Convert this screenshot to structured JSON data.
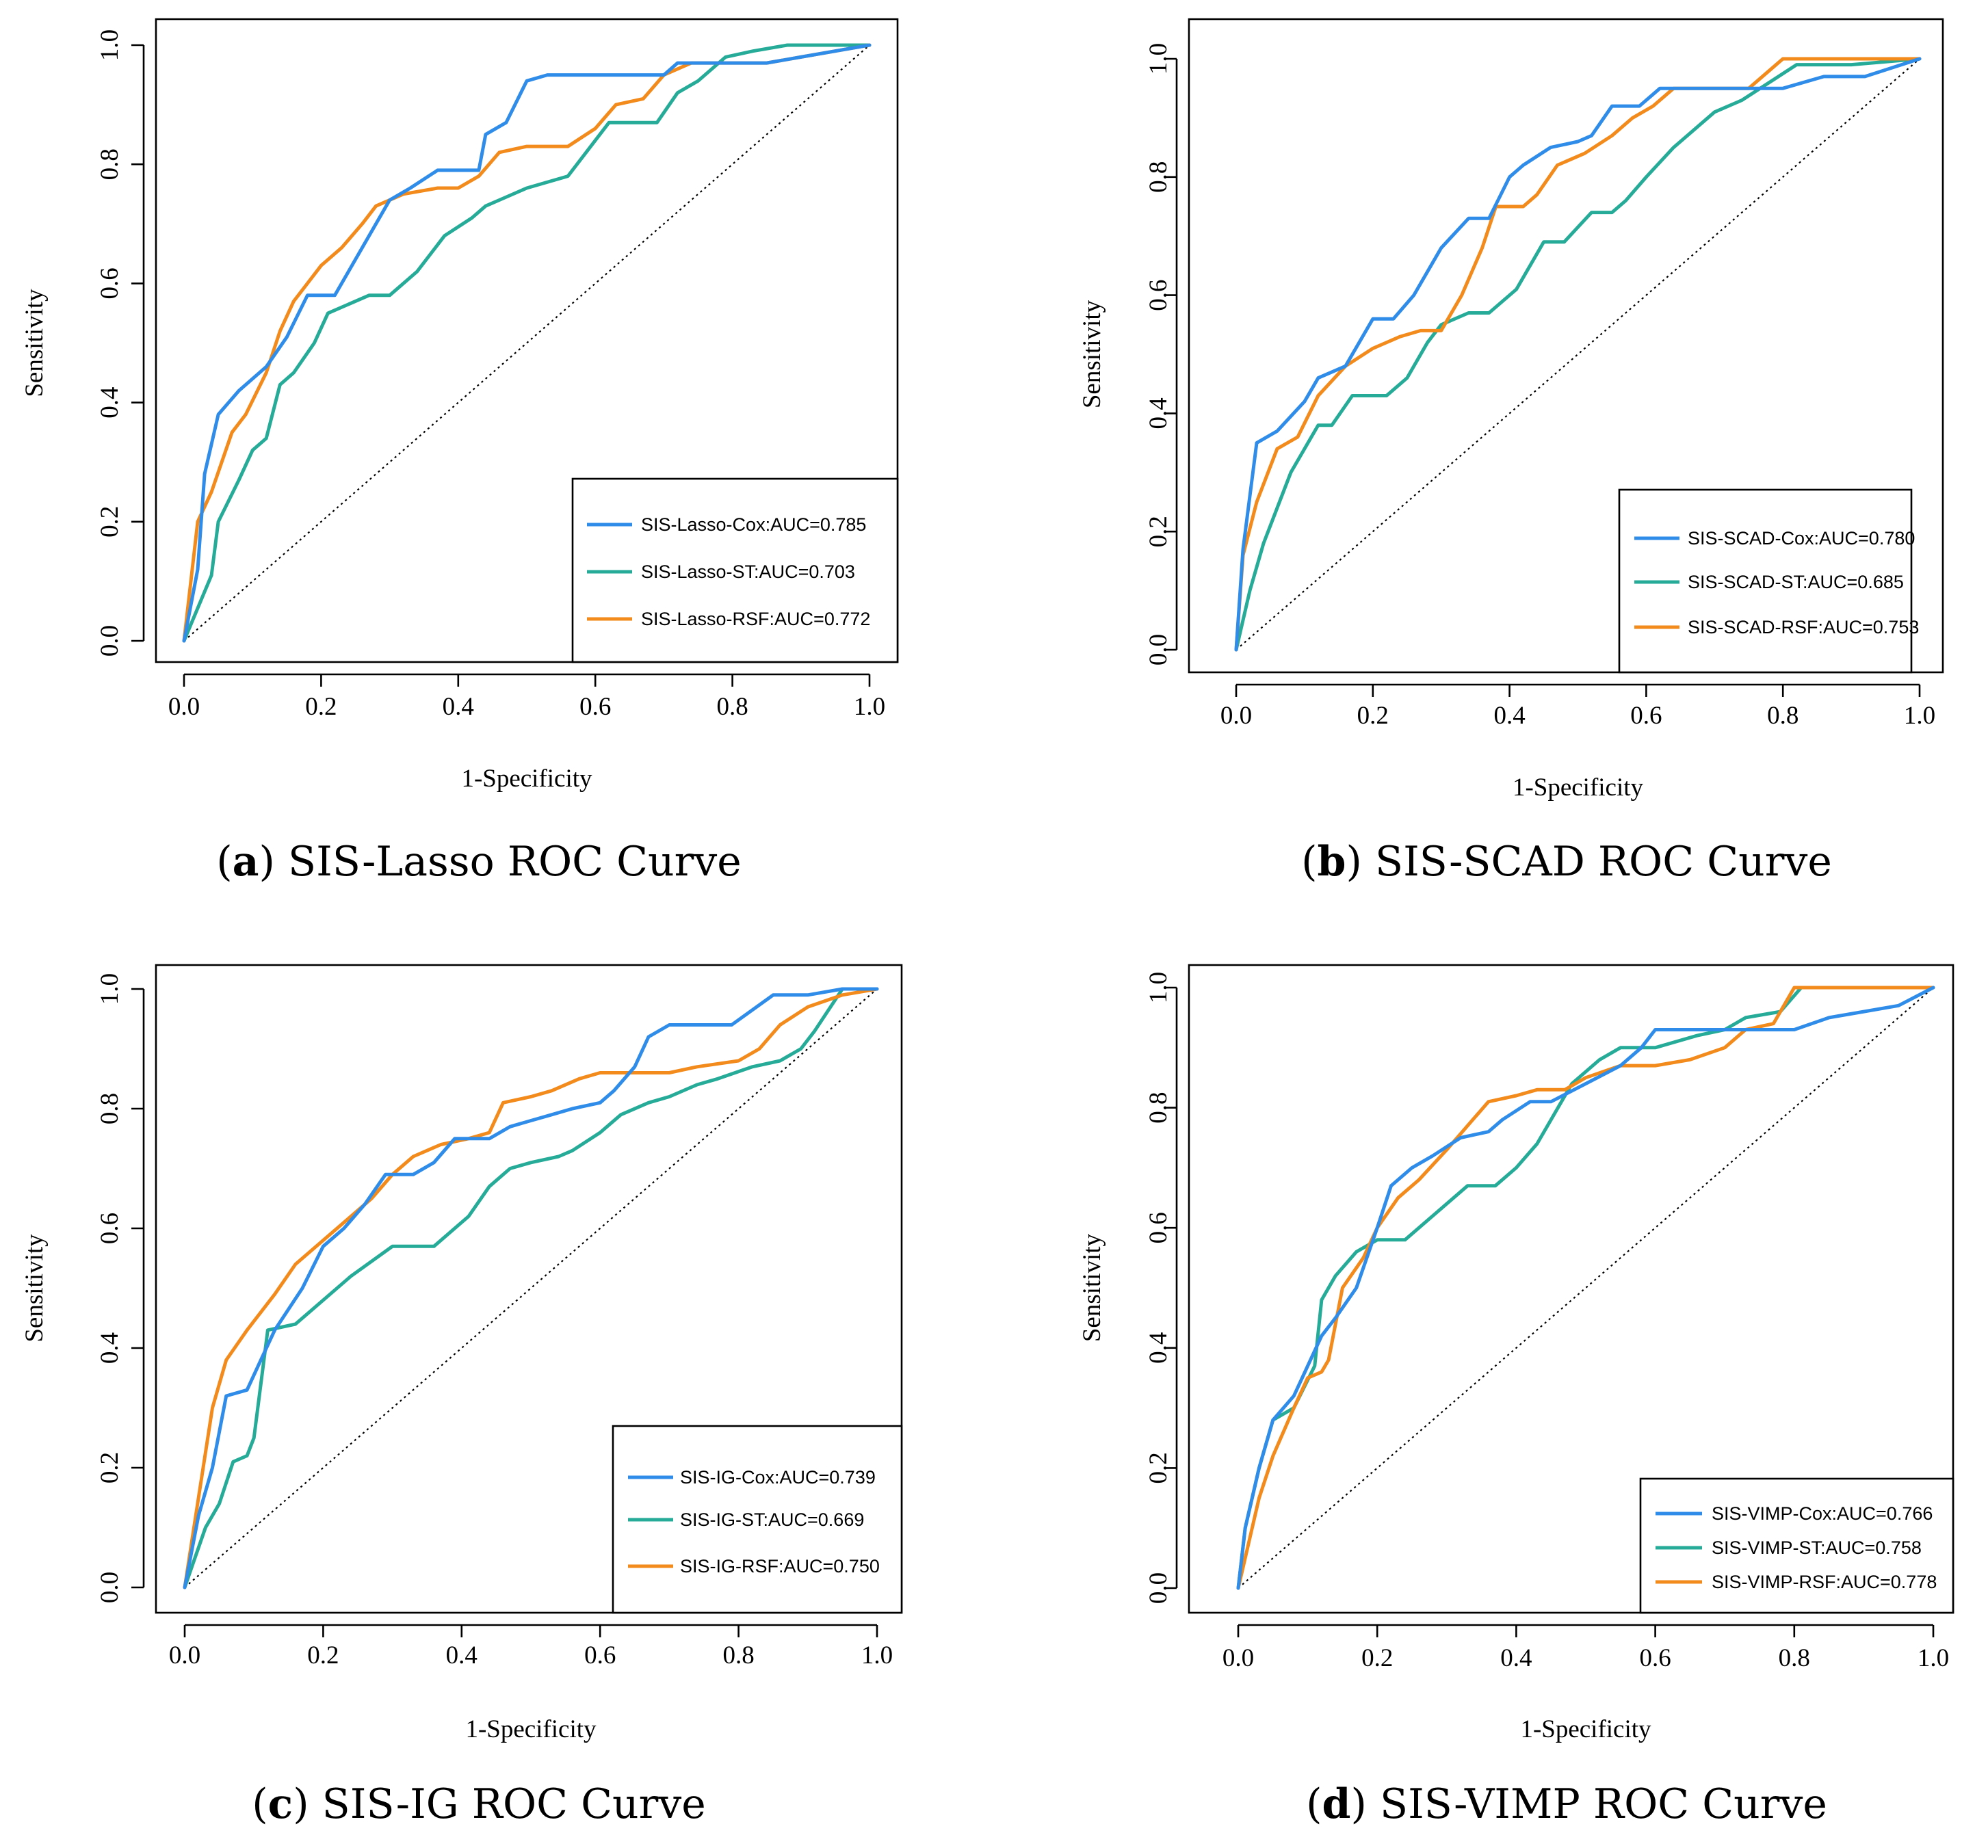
{
  "colors": {
    "cox": "#2f8ce8",
    "st": "#25ab98",
    "rsf": "#f28a1c"
  },
  "chart_data": [
    {
      "type": "line",
      "panel": "a",
      "caption": {
        "letter": "a",
        "text": "SIS-Lasso ROC Curve"
      },
      "xlabel": "1-Specificity",
      "ylabel": "Sensitivity",
      "xlim": [
        0,
        1
      ],
      "ylim": [
        0,
        1
      ],
      "xticks": [
        "0.0",
        "0.2",
        "0.4",
        "0.6",
        "0.8",
        "1.0"
      ],
      "yticks": [
        "0.0",
        "0.2",
        "0.4",
        "0.6",
        "0.8",
        "1.0"
      ],
      "legend_position": "bottom-right",
      "series": [
        {
          "key": "cox",
          "name": "SIS-Lasso-Cox:AUC=0.785",
          "x": [
            0,
            0.02,
            0.03,
            0.05,
            0.08,
            0.12,
            0.15,
            0.18,
            0.22,
            0.26,
            0.3,
            0.33,
            0.37,
            0.43,
            0.44,
            0.47,
            0.5,
            0.53,
            0.7,
            0.72,
            0.85,
            0.9,
            1.0
          ],
          "y": [
            0,
            0.12,
            0.28,
            0.38,
            0.42,
            0.46,
            0.51,
            0.58,
            0.58,
            0.66,
            0.74,
            0.76,
            0.79,
            0.79,
            0.85,
            0.87,
            0.94,
            0.95,
            0.95,
            0.97,
            0.97,
            0.98,
            1.0
          ]
        },
        {
          "key": "st",
          "name": "SIS-Lasso-ST:AUC=0.703",
          "x": [
            0,
            0.04,
            0.05,
            0.08,
            0.1,
            0.12,
            0.14,
            0.16,
            0.19,
            0.21,
            0.27,
            0.3,
            0.34,
            0.38,
            0.42,
            0.44,
            0.46,
            0.5,
            0.56,
            0.62,
            0.69,
            0.72,
            0.75,
            0.79,
            0.83,
            0.88,
            1.0
          ],
          "y": [
            0,
            0.11,
            0.2,
            0.27,
            0.32,
            0.34,
            0.43,
            0.45,
            0.5,
            0.55,
            0.58,
            0.58,
            0.62,
            0.68,
            0.71,
            0.73,
            0.74,
            0.76,
            0.78,
            0.87,
            0.87,
            0.92,
            0.94,
            0.98,
            0.99,
            1.0,
            1.0
          ]
        },
        {
          "key": "rsf",
          "name": "SIS-Lasso-RSF:AUC=0.772",
          "x": [
            0,
            0.01,
            0.02,
            0.04,
            0.07,
            0.09,
            0.12,
            0.14,
            0.16,
            0.18,
            0.2,
            0.23,
            0.26,
            0.28,
            0.32,
            0.37,
            0.4,
            0.43,
            0.46,
            0.5,
            0.56,
            0.6,
            0.63,
            0.67,
            0.7,
            0.74,
            0.8,
            0.85,
            0.9,
            0.95,
            1.0
          ],
          "y": [
            0,
            0.1,
            0.2,
            0.25,
            0.35,
            0.38,
            0.45,
            0.52,
            0.57,
            0.6,
            0.63,
            0.66,
            0.7,
            0.73,
            0.75,
            0.76,
            0.76,
            0.78,
            0.82,
            0.83,
            0.83,
            0.86,
            0.9,
            0.91,
            0.95,
            0.97,
            0.97,
            0.97,
            0.98,
            0.99,
            1.0
          ]
        }
      ]
    },
    {
      "type": "line",
      "panel": "b",
      "caption": {
        "letter": "b",
        "text": "SIS-SCAD ROC Curve"
      },
      "xlabel": "1-Specificity",
      "ylabel": "Sensitivity",
      "xlim": [
        0,
        1
      ],
      "ylim": [
        0,
        1
      ],
      "xticks": [
        "0.0",
        "0.2",
        "0.4",
        "0.6",
        "0.8",
        "1.0"
      ],
      "yticks": [
        "0.0",
        "0.2",
        "0.4",
        "0.6",
        "0.8",
        "1.0"
      ],
      "legend_position": "bottom-right",
      "series": [
        {
          "key": "cox",
          "name": "SIS-SCAD-Cox:AUC=0.780",
          "x": [
            0,
            0.01,
            0.03,
            0.06,
            0.1,
            0.12,
            0.16,
            0.2,
            0.23,
            0.26,
            0.3,
            0.34,
            0.37,
            0.4,
            0.42,
            0.46,
            0.5,
            0.52,
            0.55,
            0.59,
            0.62,
            0.75,
            0.8,
            0.86,
            0.92,
            1.0
          ],
          "y": [
            0,
            0.17,
            0.35,
            0.37,
            0.42,
            0.46,
            0.48,
            0.56,
            0.56,
            0.6,
            0.68,
            0.73,
            0.73,
            0.8,
            0.82,
            0.85,
            0.86,
            0.87,
            0.92,
            0.92,
            0.95,
            0.95,
            0.95,
            0.97,
            0.97,
            1.0
          ]
        },
        {
          "key": "st",
          "name": "SIS-SCAD-ST:AUC=0.685",
          "x": [
            0,
            0.02,
            0.04,
            0.08,
            0.12,
            0.14,
            0.17,
            0.22,
            0.25,
            0.28,
            0.3,
            0.34,
            0.37,
            0.41,
            0.45,
            0.48,
            0.52,
            0.55,
            0.57,
            0.6,
            0.64,
            0.7,
            0.74,
            0.78,
            0.82,
            0.9,
            1.0
          ],
          "y": [
            0,
            0.1,
            0.18,
            0.3,
            0.38,
            0.38,
            0.43,
            0.43,
            0.46,
            0.52,
            0.55,
            0.57,
            0.57,
            0.61,
            0.69,
            0.69,
            0.74,
            0.74,
            0.76,
            0.8,
            0.85,
            0.91,
            0.93,
            0.96,
            0.99,
            0.99,
            1.0
          ]
        },
        {
          "key": "rsf",
          "name": "SIS-SCAD-RSF:AUC=0.753",
          "x": [
            0,
            0.01,
            0.03,
            0.06,
            0.09,
            0.12,
            0.16,
            0.2,
            0.24,
            0.27,
            0.3,
            0.33,
            0.36,
            0.38,
            0.42,
            0.44,
            0.47,
            0.51,
            0.55,
            0.58,
            0.61,
            0.64,
            0.7,
            0.75,
            0.78,
            0.8,
            0.85,
            0.95,
            1.0
          ],
          "y": [
            0,
            0.16,
            0.25,
            0.34,
            0.36,
            0.43,
            0.48,
            0.51,
            0.53,
            0.54,
            0.54,
            0.6,
            0.68,
            0.75,
            0.75,
            0.77,
            0.82,
            0.84,
            0.87,
            0.9,
            0.92,
            0.95,
            0.95,
            0.95,
            0.98,
            1.0,
            1.0,
            1.0,
            1.0
          ]
        }
      ]
    },
    {
      "type": "line",
      "panel": "c",
      "caption": {
        "letter": "c",
        "text": "SIS-IG ROC Curve"
      },
      "xlabel": "1-Specificity",
      "ylabel": "Sensitivity",
      "xlim": [
        0,
        1
      ],
      "ylim": [
        0,
        1
      ],
      "xticks": [
        "0.0",
        "0.2",
        "0.4",
        "0.6",
        "0.8",
        "1.0"
      ],
      "yticks": [
        "0.0",
        "0.2",
        "0.4",
        "0.6",
        "0.8",
        "1.0"
      ],
      "legend_position": "bottom-right",
      "series": [
        {
          "key": "cox",
          "name": "SIS-IG-Cox:AUC=0.739",
          "x": [
            0,
            0.02,
            0.04,
            0.06,
            0.09,
            0.11,
            0.13,
            0.17,
            0.2,
            0.23,
            0.26,
            0.29,
            0.33,
            0.36,
            0.39,
            0.42,
            0.44,
            0.47,
            0.5,
            0.53,
            0.56,
            0.6,
            0.62,
            0.65,
            0.67,
            0.7,
            0.75,
            0.79,
            0.85,
            0.9,
            0.95,
            1.0
          ],
          "y": [
            0,
            0.12,
            0.2,
            0.32,
            0.33,
            0.38,
            0.43,
            0.5,
            0.57,
            0.6,
            0.64,
            0.69,
            0.69,
            0.71,
            0.75,
            0.75,
            0.75,
            0.77,
            0.78,
            0.79,
            0.8,
            0.81,
            0.83,
            0.87,
            0.92,
            0.94,
            0.94,
            0.94,
            0.99,
            0.99,
            1.0,
            1.0
          ]
        },
        {
          "key": "st",
          "name": "SIS-IG-ST:AUC=0.669",
          "x": [
            0,
            0.03,
            0.05,
            0.07,
            0.09,
            0.1,
            0.12,
            0.16,
            0.2,
            0.24,
            0.3,
            0.36,
            0.41,
            0.44,
            0.47,
            0.5,
            0.54,
            0.56,
            0.6,
            0.63,
            0.67,
            0.7,
            0.74,
            0.77,
            0.82,
            0.86,
            0.89,
            0.91,
            0.95,
            1.0
          ],
          "y": [
            0,
            0.1,
            0.14,
            0.21,
            0.22,
            0.25,
            0.43,
            0.44,
            0.48,
            0.52,
            0.57,
            0.57,
            0.62,
            0.67,
            0.7,
            0.71,
            0.72,
            0.73,
            0.76,
            0.79,
            0.81,
            0.82,
            0.84,
            0.85,
            0.87,
            0.88,
            0.9,
            0.93,
            1.0,
            1.0
          ]
        },
        {
          "key": "rsf",
          "name": "SIS-IG-RSF:AUC=0.750",
          "x": [
            0,
            0.02,
            0.04,
            0.06,
            0.09,
            0.13,
            0.16,
            0.2,
            0.23,
            0.27,
            0.3,
            0.33,
            0.37,
            0.41,
            0.44,
            0.46,
            0.5,
            0.53,
            0.57,
            0.6,
            0.65,
            0.7,
            0.74,
            0.8,
            0.83,
            0.86,
            0.9,
            0.95,
            1.0
          ],
          "y": [
            0,
            0.15,
            0.3,
            0.38,
            0.43,
            0.49,
            0.54,
            0.58,
            0.61,
            0.65,
            0.69,
            0.72,
            0.74,
            0.75,
            0.76,
            0.81,
            0.82,
            0.83,
            0.85,
            0.86,
            0.86,
            0.86,
            0.87,
            0.88,
            0.9,
            0.94,
            0.97,
            0.99,
            1.0
          ]
        }
      ]
    },
    {
      "type": "line",
      "panel": "d",
      "caption": {
        "letter": "d",
        "text": "SIS-VIMP ROC Curve"
      },
      "xlabel": "1-Specificity",
      "ylabel": "Sensitivity",
      "xlim": [
        0,
        1
      ],
      "ylim": [
        0,
        1
      ],
      "xticks": [
        "0.0",
        "0.2",
        "0.4",
        "0.6",
        "0.8",
        "1.0"
      ],
      "yticks": [
        "0.0",
        "0.2",
        "0.4",
        "0.6",
        "0.8",
        "1.0"
      ],
      "legend_position": "bottom-right",
      "series": [
        {
          "key": "cox",
          "name": "SIS-VIMP-Cox:AUC=0.766",
          "x": [
            0,
            0.01,
            0.03,
            0.05,
            0.08,
            0.1,
            0.12,
            0.14,
            0.17,
            0.2,
            0.22,
            0.25,
            0.28,
            0.32,
            0.36,
            0.38,
            0.42,
            0.45,
            0.5,
            0.55,
            0.58,
            0.6,
            0.63,
            0.7,
            0.8,
            0.85,
            0.9,
            0.95,
            1.0
          ],
          "y": [
            0,
            0.1,
            0.2,
            0.28,
            0.32,
            0.37,
            0.42,
            0.45,
            0.5,
            0.6,
            0.67,
            0.7,
            0.72,
            0.75,
            0.76,
            0.78,
            0.81,
            0.81,
            0.84,
            0.87,
            0.9,
            0.93,
            0.93,
            0.93,
            0.93,
            0.95,
            0.96,
            0.97,
            1.0
          ]
        },
        {
          "key": "st",
          "name": "SIS-VIMP-ST:AUC=0.758",
          "x": [
            0,
            0.01,
            0.03,
            0.05,
            0.08,
            0.11,
            0.12,
            0.14,
            0.17,
            0.2,
            0.24,
            0.28,
            0.33,
            0.37,
            0.4,
            0.43,
            0.45,
            0.48,
            0.52,
            0.55,
            0.6,
            0.66,
            0.7,
            0.73,
            0.78,
            0.81,
            0.85,
            1.0
          ],
          "y": [
            0,
            0.1,
            0.2,
            0.28,
            0.3,
            0.37,
            0.48,
            0.52,
            0.56,
            0.58,
            0.58,
            0.62,
            0.67,
            0.67,
            0.7,
            0.74,
            0.78,
            0.84,
            0.88,
            0.9,
            0.9,
            0.92,
            0.93,
            0.95,
            0.96,
            1.0,
            1.0,
            1.0
          ]
        },
        {
          "key": "rsf",
          "name": "SIS-VIMP-RSF:AUC=0.778",
          "x": [
            0,
            0.01,
            0.03,
            0.05,
            0.08,
            0.1,
            0.12,
            0.13,
            0.15,
            0.18,
            0.2,
            0.23,
            0.26,
            0.3,
            0.33,
            0.36,
            0.4,
            0.43,
            0.47,
            0.5,
            0.55,
            0.6,
            0.65,
            0.7,
            0.73,
            0.77,
            0.8,
            0.85,
            1.0
          ],
          "y": [
            0,
            0.05,
            0.15,
            0.22,
            0.3,
            0.35,
            0.36,
            0.38,
            0.5,
            0.55,
            0.6,
            0.65,
            0.68,
            0.73,
            0.77,
            0.81,
            0.82,
            0.83,
            0.83,
            0.85,
            0.87,
            0.87,
            0.88,
            0.9,
            0.93,
            0.94,
            1.0,
            1.0,
            1.0
          ]
        }
      ]
    }
  ]
}
